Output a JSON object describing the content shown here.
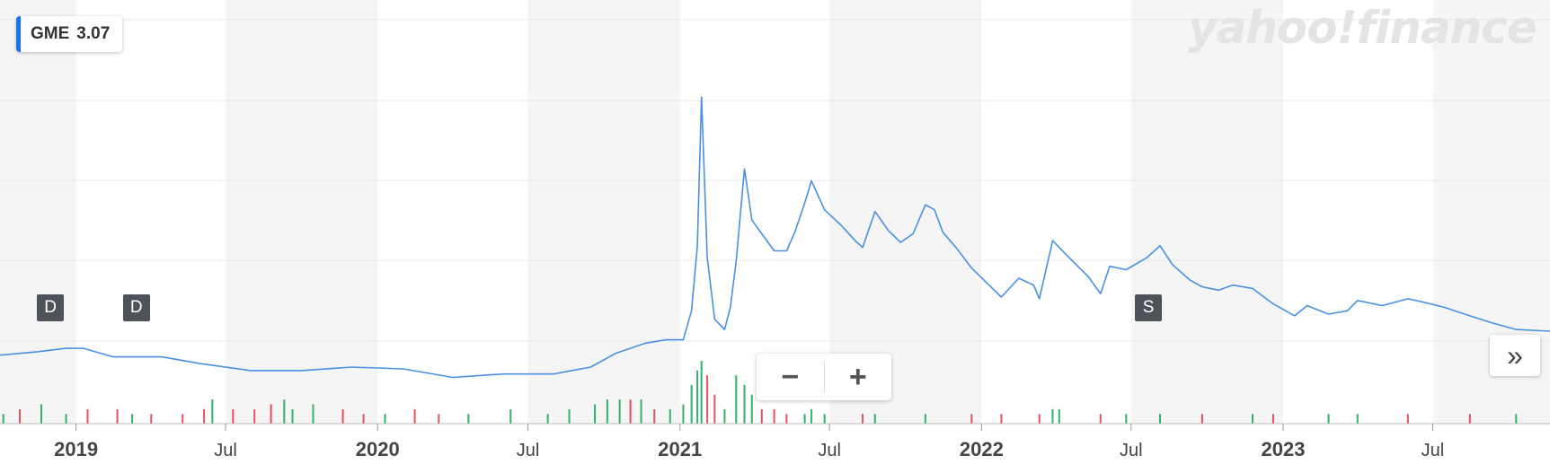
{
  "ticker": {
    "symbol": "GME",
    "price": "3.07",
    "color": "#1a73e8"
  },
  "watermark": "yahoo!finance",
  "zoom": {
    "minus": "−",
    "plus": "+"
  },
  "next_label": "»",
  "events": [
    {
      "label": "D",
      "date": "2018-12-01"
    },
    {
      "label": "D",
      "date": "2019-03-15"
    },
    {
      "label": "S",
      "date": "2022-07-22"
    }
  ],
  "chart_data": {
    "type": "line",
    "x_range": [
      "2018-10-01",
      "2023-11-20"
    ],
    "x_ticks": [
      {
        "label": "2019",
        "date": "2019-01-01",
        "bold": true
      },
      {
        "label": "Jul",
        "date": "2019-07-01",
        "bold": false
      },
      {
        "label": "2020",
        "date": "2020-01-01",
        "bold": true
      },
      {
        "label": "Jul",
        "date": "2020-07-01",
        "bold": false
      },
      {
        "label": "2021",
        "date": "2021-01-01",
        "bold": true
      },
      {
        "label": "Jul",
        "date": "2021-07-01",
        "bold": false
      },
      {
        "label": "2022",
        "date": "2022-01-01",
        "bold": true
      },
      {
        "label": "Jul",
        "date": "2022-07-01",
        "bold": false
      },
      {
        "label": "2023",
        "date": "2023-01-01",
        "bold": true
      },
      {
        "label": "Jul",
        "date": "2023-07-01",
        "bold": false
      }
    ],
    "y_range": [
      0,
      21
    ],
    "grid": true,
    "colors": {
      "line": "#4a90e2",
      "up": "#2db36c",
      "down": "#e0535e",
      "band": "#f5f5f5"
    },
    "series": [
      {
        "values": [
          [
            "2018-10-01",
            3.9
          ],
          [
            "2018-11-15",
            4.1
          ],
          [
            "2018-12-20",
            4.3
          ],
          [
            "2019-01-10",
            4.3
          ],
          [
            "2019-02-15",
            3.8
          ],
          [
            "2019-04-15",
            3.8
          ],
          [
            "2019-06-01",
            3.4
          ],
          [
            "2019-08-01",
            3.0
          ],
          [
            "2019-10-01",
            3.0
          ],
          [
            "2019-12-01",
            3.2
          ],
          [
            "2020-02-01",
            3.1
          ],
          [
            "2020-04-01",
            2.6
          ],
          [
            "2020-06-01",
            2.8
          ],
          [
            "2020-08-01",
            2.8
          ],
          [
            "2020-09-15",
            3.2
          ],
          [
            "2020-10-15",
            4.0
          ],
          [
            "2020-11-20",
            4.6
          ],
          [
            "2020-12-15",
            4.8
          ],
          [
            "2021-01-05",
            4.8
          ],
          [
            "2021-01-15",
            6.5
          ],
          [
            "2021-01-22",
            10.3
          ],
          [
            "2021-01-27",
            19.0
          ],
          [
            "2021-02-03",
            9.6
          ],
          [
            "2021-02-12",
            6.0
          ],
          [
            "2021-02-24",
            5.4
          ],
          [
            "2021-03-03",
            6.7
          ],
          [
            "2021-03-10",
            9.4
          ],
          [
            "2021-03-20",
            14.8
          ],
          [
            "2021-03-29",
            11.8
          ],
          [
            "2021-04-10",
            11.0
          ],
          [
            "2021-04-25",
            10.0
          ],
          [
            "2021-05-10",
            10.0
          ],
          [
            "2021-05-20",
            11.1
          ],
          [
            "2021-06-01",
            12.8
          ],
          [
            "2021-06-09",
            14.1
          ],
          [
            "2021-06-25",
            12.4
          ],
          [
            "2021-07-15",
            11.5
          ],
          [
            "2021-08-01",
            10.6
          ],
          [
            "2021-08-10",
            10.2
          ],
          [
            "2021-08-25",
            12.3
          ],
          [
            "2021-09-10",
            11.2
          ],
          [
            "2021-09-25",
            10.5
          ],
          [
            "2021-10-10",
            11.0
          ],
          [
            "2021-10-25",
            12.7
          ],
          [
            "2021-11-05",
            12.4
          ],
          [
            "2021-11-15",
            11.1
          ],
          [
            "2021-12-01",
            10.2
          ],
          [
            "2021-12-20",
            9.0
          ],
          [
            "2022-01-10",
            8.0
          ],
          [
            "2022-01-25",
            7.3
          ],
          [
            "2022-02-15",
            8.4
          ],
          [
            "2022-03-05",
            8.0
          ],
          [
            "2022-03-12",
            7.2
          ],
          [
            "2022-03-28",
            10.6
          ],
          [
            "2022-04-15",
            9.7
          ],
          [
            "2022-05-10",
            8.5
          ],
          [
            "2022-05-25",
            7.5
          ],
          [
            "2022-06-05",
            9.1
          ],
          [
            "2022-06-25",
            8.9
          ],
          [
            "2022-07-20",
            9.6
          ],
          [
            "2022-08-05",
            10.3
          ],
          [
            "2022-08-20",
            9.2
          ],
          [
            "2022-09-10",
            8.3
          ],
          [
            "2022-09-25",
            7.9
          ],
          [
            "2022-10-15",
            7.7
          ],
          [
            "2022-11-01",
            8.0
          ],
          [
            "2022-11-25",
            7.8
          ],
          [
            "2022-12-20",
            6.9
          ],
          [
            "2023-01-15",
            6.2
          ],
          [
            "2023-01-30",
            6.8
          ],
          [
            "2023-02-25",
            6.3
          ],
          [
            "2023-03-20",
            6.5
          ],
          [
            "2023-04-01",
            7.1
          ],
          [
            "2023-05-01",
            6.8
          ],
          [
            "2023-06-01",
            7.2
          ],
          [
            "2023-06-20",
            7.0
          ],
          [
            "2023-07-15",
            6.7
          ],
          [
            "2023-08-15",
            6.2
          ],
          [
            "2023-09-10",
            5.8
          ],
          [
            "2023-10-10",
            5.4
          ],
          [
            "2023-11-20",
            5.3
          ]
        ]
      }
    ],
    "volume": [
      [
        "2018-10-05",
        2,
        "up"
      ],
      [
        "2018-10-25",
        3,
        "down"
      ],
      [
        "2018-11-20",
        4,
        "up"
      ],
      [
        "2018-12-20",
        2,
        "up"
      ],
      [
        "2019-01-15",
        3,
        "down"
      ],
      [
        "2019-02-20",
        3,
        "down"
      ],
      [
        "2019-03-10",
        2,
        "up"
      ],
      [
        "2019-04-02",
        2,
        "down"
      ],
      [
        "2019-05-10",
        2,
        "down"
      ],
      [
        "2019-06-05",
        3,
        "down"
      ],
      [
        "2019-06-15",
        5,
        "up"
      ],
      [
        "2019-07-10",
        3,
        "down"
      ],
      [
        "2019-08-05",
        3,
        "down"
      ],
      [
        "2019-08-25",
        4,
        "down"
      ],
      [
        "2019-09-10",
        5,
        "up"
      ],
      [
        "2019-09-20",
        3,
        "up"
      ],
      [
        "2019-10-15",
        4,
        "up"
      ],
      [
        "2019-11-20",
        3,
        "down"
      ],
      [
        "2019-12-15",
        2,
        "down"
      ],
      [
        "2020-01-10",
        2,
        "up"
      ],
      [
        "2020-02-15",
        3,
        "down"
      ],
      [
        "2020-03-15",
        2,
        "down"
      ],
      [
        "2020-04-20",
        2,
        "up"
      ],
      [
        "2020-06-10",
        3,
        "up"
      ],
      [
        "2020-07-25",
        2,
        "up"
      ],
      [
        "2020-08-20",
        3,
        "up"
      ],
      [
        "2020-09-20",
        4,
        "up"
      ],
      [
        "2020-10-05",
        5,
        "up"
      ],
      [
        "2020-10-20",
        5,
        "up"
      ],
      [
        "2020-11-02",
        5,
        "down"
      ],
      [
        "2020-11-15",
        5,
        "up"
      ],
      [
        "2020-12-01",
        3,
        "down"
      ],
      [
        "2020-12-20",
        3,
        "up"
      ],
      [
        "2021-01-05",
        4,
        "up"
      ],
      [
        "2021-01-15",
        8,
        "up"
      ],
      [
        "2021-01-22",
        11,
        "up"
      ],
      [
        "2021-01-27",
        13,
        "up"
      ],
      [
        "2021-02-03",
        10,
        "down"
      ],
      [
        "2021-02-12",
        6,
        "down"
      ],
      [
        "2021-02-24",
        3,
        "up"
      ],
      [
        "2021-03-10",
        10,
        "up"
      ],
      [
        "2021-03-20",
        8,
        "up"
      ],
      [
        "2021-03-29",
        6,
        "up"
      ],
      [
        "2021-04-10",
        3,
        "down"
      ],
      [
        "2021-04-25",
        3,
        "down"
      ],
      [
        "2021-05-10",
        2,
        "down"
      ],
      [
        "2021-06-01",
        2,
        "up"
      ],
      [
        "2021-06-09",
        3,
        "up"
      ],
      [
        "2021-06-25",
        2,
        "up"
      ],
      [
        "2021-08-10",
        2,
        "down"
      ],
      [
        "2021-08-25",
        2,
        "up"
      ],
      [
        "2021-10-25",
        2,
        "up"
      ],
      [
        "2021-12-20",
        2,
        "down"
      ],
      [
        "2022-01-25",
        2,
        "down"
      ],
      [
        "2022-03-12",
        2,
        "down"
      ],
      [
        "2022-03-28",
        3,
        "up"
      ],
      [
        "2022-04-05",
        3,
        "up"
      ],
      [
        "2022-05-25",
        2,
        "down"
      ],
      [
        "2022-06-25",
        2,
        "up"
      ],
      [
        "2022-08-05",
        2,
        "up"
      ],
      [
        "2022-09-25",
        2,
        "down"
      ],
      [
        "2022-11-25",
        2,
        "up"
      ],
      [
        "2022-12-20",
        2,
        "down"
      ],
      [
        "2023-02-25",
        2,
        "up"
      ],
      [
        "2023-04-01",
        2,
        "up"
      ],
      [
        "2023-06-01",
        2,
        "down"
      ],
      [
        "2023-08-15",
        2,
        "down"
      ],
      [
        "2023-10-10",
        2,
        "up"
      ]
    ]
  }
}
